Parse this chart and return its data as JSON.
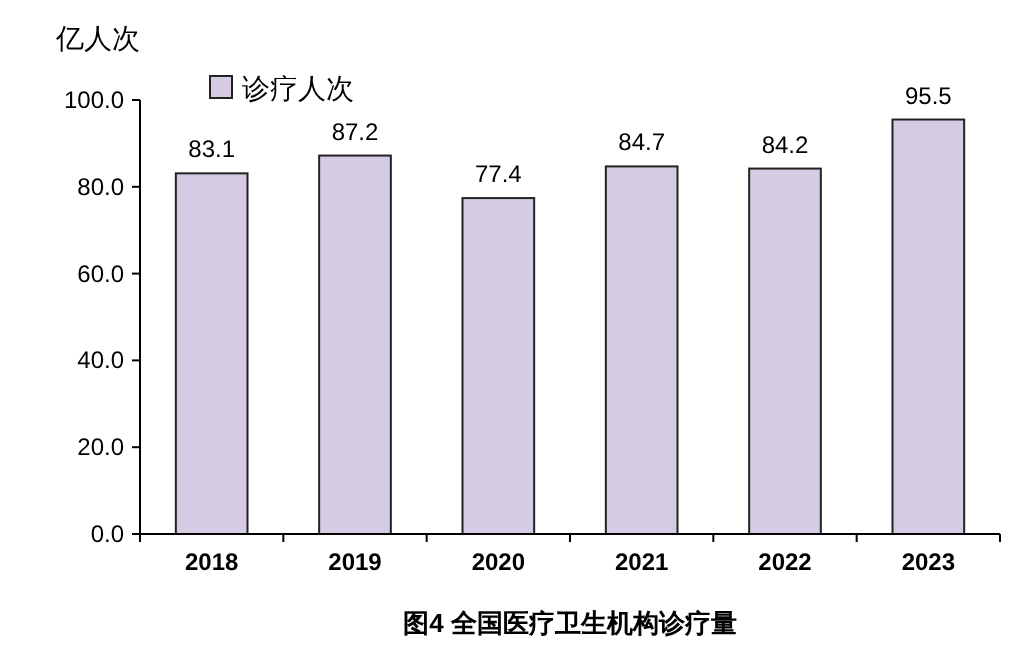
{
  "chart_data": {
    "type": "bar",
    "title": "图4  全国医疗卫生机构诊疗量",
    "ylabel": "亿人次",
    "categories": [
      "2018",
      "2019",
      "2020",
      "2021",
      "2022",
      "2023"
    ],
    "series": [
      {
        "name": "诊疗人次",
        "color": "#d5cbe3",
        "values": [
          83.1,
          87.2,
          77.4,
          84.7,
          84.2,
          95.5
        ]
      }
    ],
    "ylim": [
      0,
      100
    ],
    "yticks": [
      {
        "value": 0,
        "label": "0.0"
      },
      {
        "value": 20,
        "label": "20.0"
      },
      {
        "value": 40,
        "label": "40.0"
      },
      {
        "value": 60,
        "label": "60.0"
      },
      {
        "value": 80,
        "label": "80.0"
      },
      {
        "value": 100,
        "label": "100.0"
      }
    ],
    "data_labels": true,
    "legend": "top left",
    "grid": false
  }
}
